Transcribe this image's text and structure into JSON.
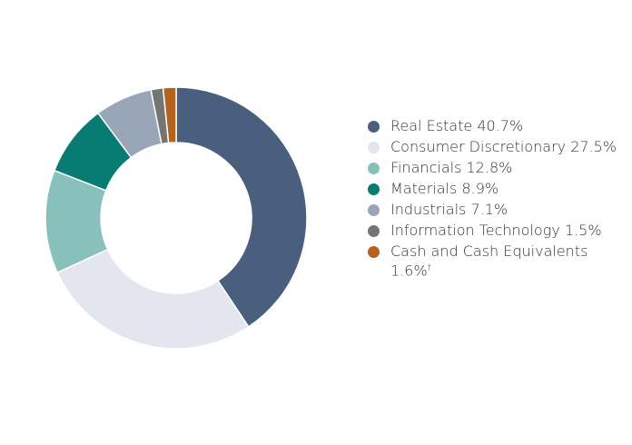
{
  "chart_data": {
    "type": "pie",
    "donut": true,
    "start": "top",
    "direction": "clockwise",
    "legend_position": "right",
    "slices": [
      {
        "label": "Real Estate",
        "value": 40.7,
        "display": "40.7%",
        "color": "#4a5f7e"
      },
      {
        "label": "Consumer Discretionary",
        "value": 27.5,
        "display": "27.5%",
        "color": "#e3e6ee"
      },
      {
        "label": "Financials",
        "value": 12.8,
        "display": "12.8%",
        "color": "#88c0bb"
      },
      {
        "label": "Materials",
        "value": 8.9,
        "display": "8.9%",
        "color": "#087b73"
      },
      {
        "label": "Industrials",
        "value": 7.1,
        "display": "7.1%",
        "color": "#99a6b8"
      },
      {
        "label": "Information Technology",
        "value": 1.5,
        "display": "1.5%",
        "color": "#757575"
      },
      {
        "label": "Cash and Cash Equivalents",
        "value": 1.6,
        "display": "1.6%",
        "note": "†",
        "color": "#b5621f"
      }
    ]
  }
}
